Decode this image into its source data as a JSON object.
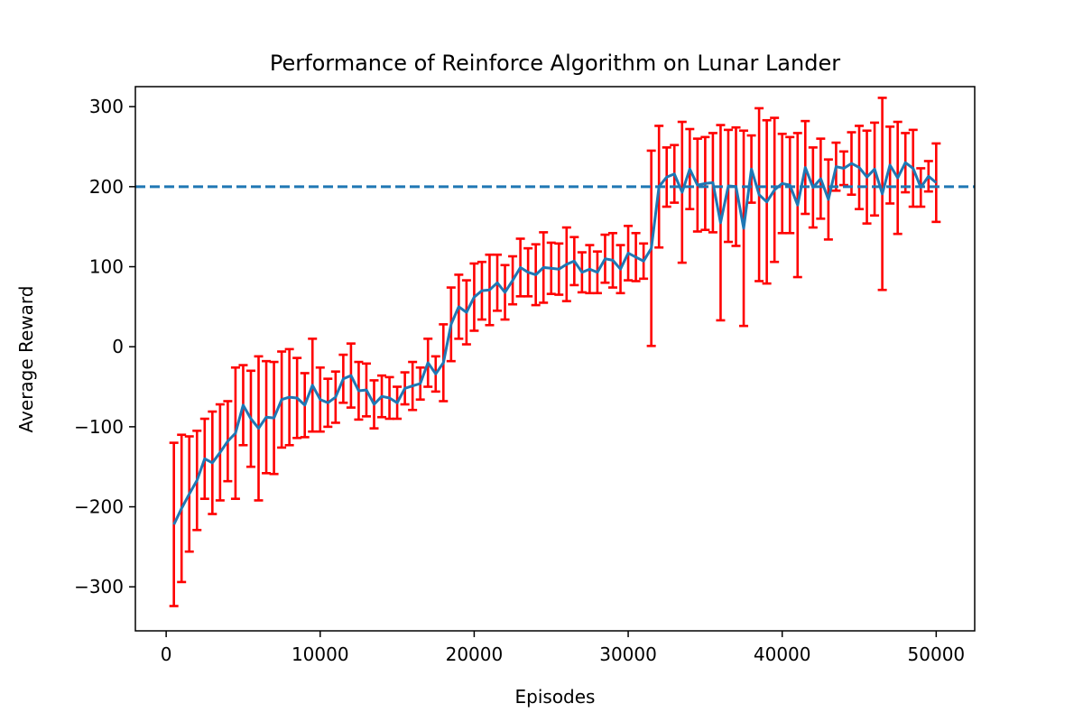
{
  "chart_data": {
    "type": "line",
    "title": "Performance of Reinforce Algorithm on Lunar Lander",
    "xlabel": "Episodes",
    "ylabel": "Average Reward",
    "xlim": [
      -2000,
      52500
    ],
    "ylim": [
      -355,
      325
    ],
    "xticks": [
      0,
      10000,
      20000,
      30000,
      40000,
      50000
    ],
    "xtick_labels": [
      "0",
      "10000",
      "20000",
      "30000",
      "40000",
      "50000"
    ],
    "yticks": [
      -300,
      -200,
      -100,
      0,
      100,
      200,
      300
    ],
    "ytick_labels": [
      "−300",
      "−200",
      "−100",
      "0",
      "100",
      "200",
      "300"
    ],
    "grid": false,
    "legend": "none",
    "colors": {
      "line": "#1f77b4",
      "errorbar": "#ff0000",
      "threshold": "#1f77b4"
    },
    "threshold": {
      "y": 200,
      "style": "dashed"
    },
    "series": [
      {
        "x": [
          500,
          1000,
          1500,
          2000,
          2500,
          3000,
          3500,
          4000,
          4500,
          5000,
          5500,
          6000,
          6500,
          7000,
          7500,
          8000,
          8500,
          9000,
          9500,
          10000,
          10500,
          11000,
          11500,
          12000,
          12500,
          13000,
          13500,
          14000,
          14500,
          15000,
          15500,
          16000,
          16500,
          17000,
          17500,
          18000,
          18500,
          19000,
          19500,
          20000,
          20500,
          21000,
          21500,
          22000,
          22500,
          23000,
          23500,
          24000,
          24500,
          25000,
          25500,
          26000,
          26500,
          27000,
          27500,
          28000,
          28500,
          29000,
          29500,
          30000,
          30500,
          31000,
          31500,
          32000,
          32500,
          33000,
          33500,
          34000,
          34500,
          35000,
          35500,
          36000,
          36500,
          37000,
          37500,
          38000,
          38500,
          39000,
          39500,
          40000,
          40500,
          41000,
          41500,
          42000,
          42500,
          43000,
          43500,
          44000,
          44500,
          45000,
          45500,
          46000,
          46500,
          47000,
          47500,
          48000,
          48500,
          49000,
          49500,
          50000
        ],
        "y": [
          -222,
          -202,
          -184,
          -167,
          -140,
          -145,
          -132,
          -118,
          -108,
          -73,
          -90,
          -102,
          -88,
          -89,
          -66,
          -63,
          -64,
          -73,
          -48,
          -66,
          -70,
          -63,
          -40,
          -36,
          -55,
          -54,
          -72,
          -62,
          -64,
          -70,
          -52,
          -49,
          -46,
          -20,
          -34,
          -20,
          28,
          50,
          43,
          62,
          70,
          71,
          80,
          68,
          83,
          99,
          93,
          90,
          99,
          98,
          97,
          103,
          107,
          93,
          97,
          93,
          110,
          108,
          97,
          117,
          112,
          107,
          123,
          200,
          212,
          216,
          193,
          222,
          202,
          204,
          205,
          155,
          201,
          200,
          148,
          222,
          190,
          181,
          196,
          204,
          202,
          177,
          224,
          199,
          210,
          184,
          225,
          223,
          229,
          224,
          212,
          222,
          191,
          227,
          211,
          230,
          223,
          199,
          213,
          205
        ],
        "error": [
          102,
          92,
          72,
          62,
          50,
          64,
          60,
          50,
          82,
          50,
          60,
          90,
          70,
          70,
          60,
          60,
          50,
          40,
          58,
          40,
          30,
          32,
          30,
          40,
          36,
          33,
          30,
          26,
          26,
          20,
          20,
          30,
          20,
          30,
          22,
          48,
          46,
          40,
          40,
          42,
          36,
          44,
          35,
          34,
          30,
          36,
          30,
          38,
          44,
          32,
          32,
          46,
          30,
          25,
          30,
          26,
          30,
          34,
          30,
          34,
          30,
          22,
          122,
          76,
          37,
          36,
          88,
          50,
          58,
          58,
          62,
          122,
          70,
          74,
          122,
          42,
          108,
          102,
          90,
          62,
          60,
          90,
          58,
          50,
          50,
          50,
          30,
          21,
          39,
          52,
          58,
          58,
          120,
          48,
          70,
          37,
          48,
          24,
          19,
          49
        ]
      }
    ]
  }
}
